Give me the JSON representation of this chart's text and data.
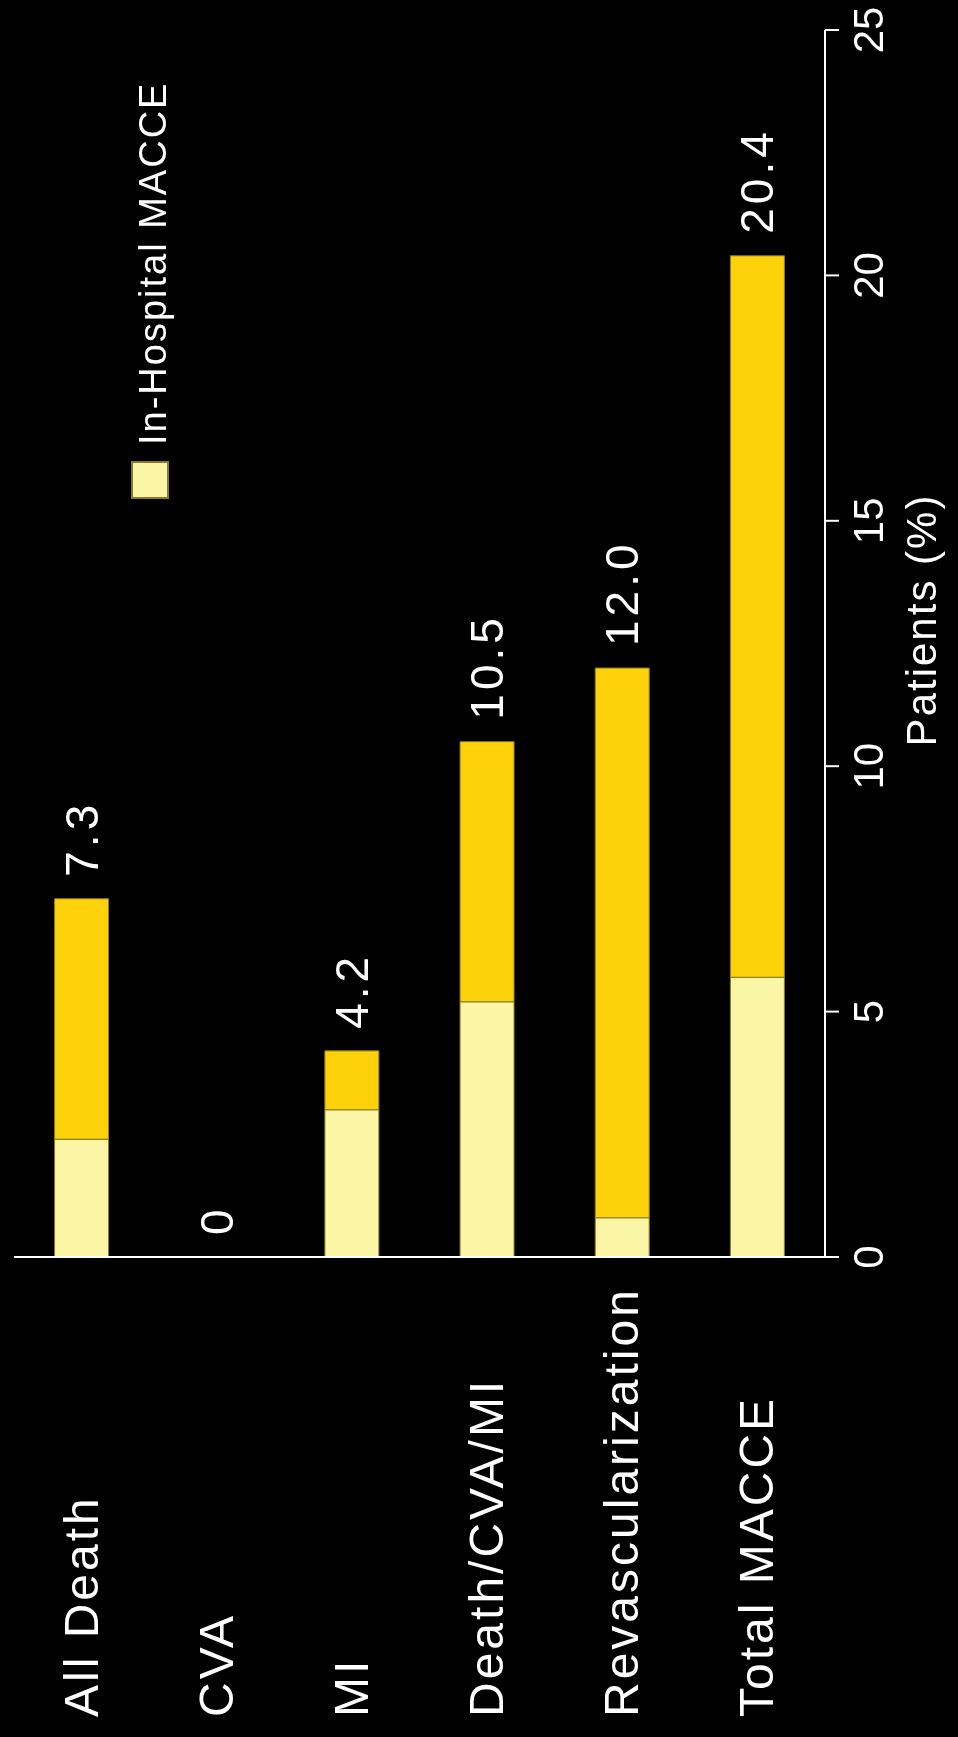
{
  "chart_data": {
    "type": "bar",
    "stacked": true,
    "categories": [
      "All Death",
      "CVA",
      "MI",
      "Death/CVA/MI",
      "Revascularization",
      "Total MACCE"
    ],
    "series": [
      {
        "name": "In-Hospital MACCE",
        "color": "#fbf5a6",
        "values": [
          2.4,
          0,
          3.0,
          5.2,
          0.8,
          5.7
        ]
      },
      {
        "color": "#fdd20a",
        "values": [
          4.9,
          0,
          1.2,
          5.3,
          11.2,
          14.7
        ]
      }
    ],
    "totals": [
      "7.3",
      "0",
      "4.2",
      "10.5",
      "12.0",
      "20.4"
    ],
    "ylabel": "Patients (%)",
    "ylim": [
      0,
      25
    ],
    "yticks": [
      0,
      5,
      10,
      15,
      20,
      25
    ],
    "grid": false,
    "legend": "top left"
  }
}
